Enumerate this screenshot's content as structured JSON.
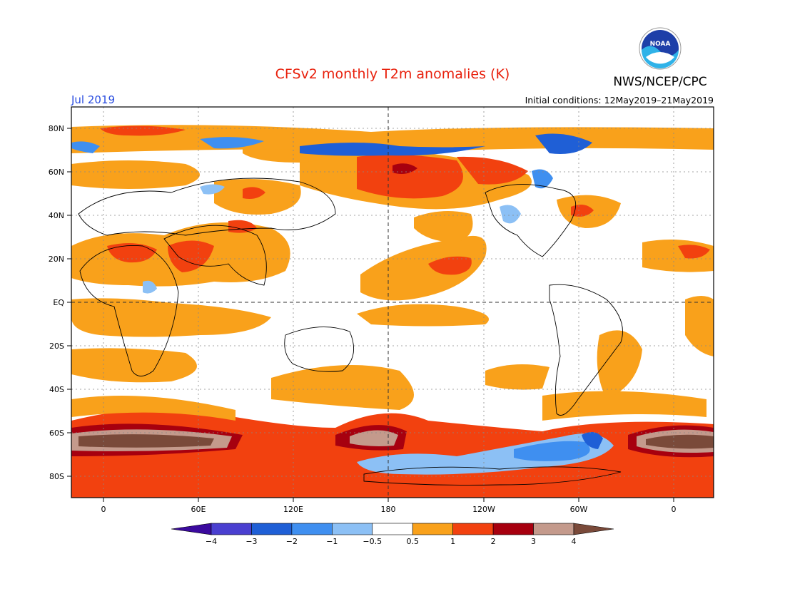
{
  "map": {
    "title": "CFSv2 monthly T2m anomalies (K)",
    "valid_month": "Jul 2019",
    "initial_conditions": "Initial conditions: 12May2019–21May2019",
    "agency": "NWS/NCEP/CPC",
    "logo_text": "NOAA",
    "lat_labels": [
      "80N",
      "60N",
      "40N",
      "20N",
      "EQ",
      "20S",
      "40S",
      "60S",
      "80S"
    ],
    "lon_labels": [
      "0",
      "60E",
      "120E",
      "180",
      "120W",
      "60W",
      "0"
    ],
    "colorbar": {
      "tick_labels": [
        "−4",
        "−3",
        "−2",
        "−1",
        "−0.5",
        "0.5",
        "1",
        "2",
        "3",
        "4"
      ],
      "colors": [
        "#3b0a9e",
        "#4a3fd0",
        "#1f5fd6",
        "#3f8ff0",
        "#8cc0f5",
        "#ffffff",
        "#f9a11b",
        "#f2410f",
        "#a7000f",
        "#c49a8c",
        "#7a4a3a"
      ]
    }
  }
}
